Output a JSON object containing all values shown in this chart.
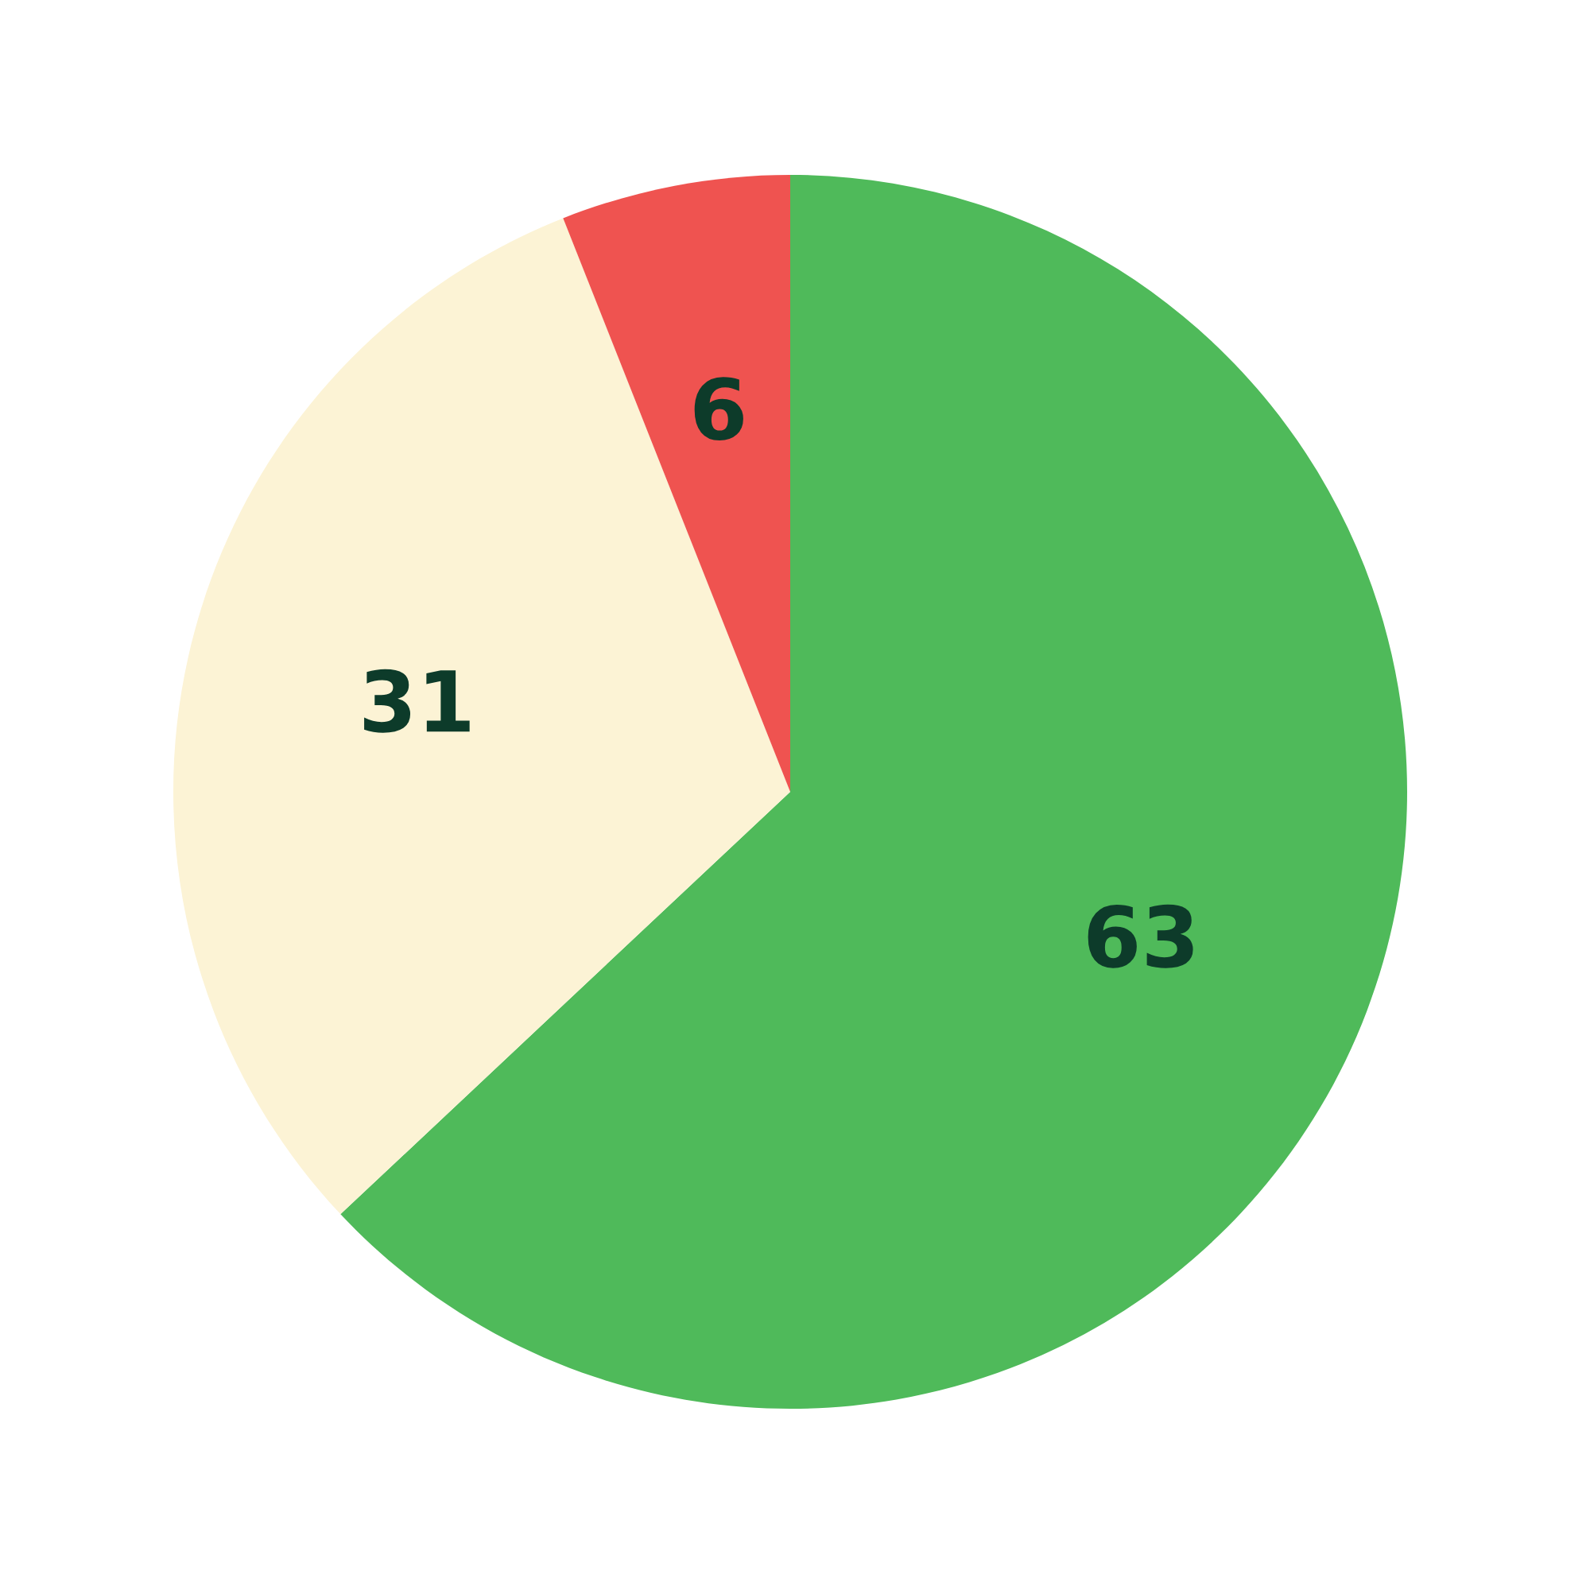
{
  "chart_data": {
    "type": "pie",
    "categories": [
      null,
      null,
      null
    ],
    "values": [
      63,
      31,
      6
    ],
    "colors": [
      "#4fba5a",
      "#fcf3d5",
      "#ef5350"
    ],
    "data_labels": true,
    "legend": false
  }
}
